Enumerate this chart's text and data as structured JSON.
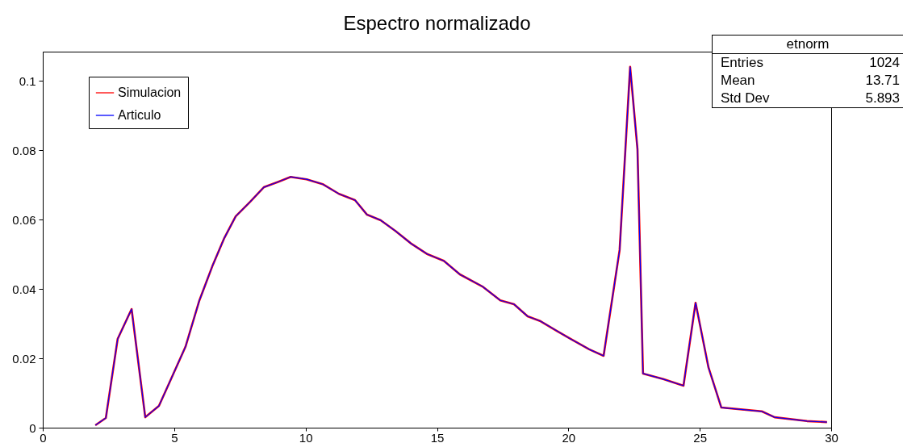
{
  "chart_data": {
    "type": "line",
    "title": "Espectro normalizado",
    "xlim": [
      0,
      30
    ],
    "ylim": [
      0,
      0.1084
    ],
    "xticks": [
      0,
      5,
      10,
      15,
      20,
      25,
      30
    ],
    "yticks": [
      0,
      0.02,
      0.04,
      0.06,
      0.08,
      0.1
    ],
    "legend": "top left",
    "annotations": [
      "etnorm",
      "Entries",
      "1024",
      "Mean",
      "13.71",
      "Std Dev",
      "5.893"
    ],
    "series": [
      {
        "name": "Simulacion",
        "color": "#ff0000",
        "x": [
          2.0,
          2.4,
          2.85,
          3.38,
          3.9,
          4.42,
          4.88,
          5.43,
          5.96,
          6.45,
          6.91,
          7.34,
          7.89,
          8.41,
          8.97,
          9.43,
          10.04,
          10.65,
          11.27,
          11.88,
          12.34,
          12.86,
          13.42,
          14.03,
          14.64,
          15.26,
          15.87,
          16.73,
          17.41,
          17.93,
          18.45,
          18.94,
          19.56,
          20.08,
          20.79,
          21.34,
          21.95,
          22.35,
          22.63,
          22.84,
          23.61,
          24.38,
          24.84,
          25.33,
          25.82,
          27.36,
          27.85,
          29.08,
          29.84
        ],
        "values": [
          0.0007,
          0.0028,
          0.0256,
          0.0342,
          0.003,
          0.0063,
          0.014,
          0.0233,
          0.0367,
          0.0465,
          0.0547,
          0.0609,
          0.0651,
          0.0693,
          0.0709,
          0.0723,
          0.0716,
          0.0702,
          0.0674,
          0.0656,
          0.0614,
          0.0598,
          0.0567,
          0.053,
          0.05,
          0.0481,
          0.0442,
          0.0407,
          0.0367,
          0.0356,
          0.0321,
          0.0307,
          0.0279,
          0.0256,
          0.0226,
          0.0207,
          0.0512,
          0.104,
          0.0802,
          0.0156,
          0.014,
          0.0121,
          0.036,
          0.0174,
          0.0058,
          0.0047,
          0.003,
          0.0019,
          0.0016
        ]
      },
      {
        "name": "Articulo",
        "color": "#0000ff",
        "x": [
          2.0,
          2.4,
          2.85,
          3.38,
          3.9,
          4.42,
          4.88,
          5.43,
          5.96,
          6.45,
          6.91,
          7.34,
          7.89,
          8.41,
          8.97,
          9.43,
          10.04,
          10.65,
          11.27,
          11.88,
          12.34,
          12.86,
          13.42,
          14.03,
          14.64,
          15.26,
          15.87,
          16.73,
          17.41,
          17.93,
          18.45,
          18.94,
          19.56,
          20.08,
          20.79,
          21.34,
          21.95,
          22.35,
          22.63,
          22.84,
          23.61,
          24.38,
          24.84,
          25.33,
          25.82,
          27.36,
          27.85,
          29.08,
          29.84
        ],
        "values": [
          0.0007,
          0.0028,
          0.0256,
          0.0342,
          0.003,
          0.0063,
          0.014,
          0.0233,
          0.0367,
          0.0465,
          0.0547,
          0.0609,
          0.0651,
          0.0693,
          0.0709,
          0.0723,
          0.0716,
          0.0702,
          0.0674,
          0.0656,
          0.0614,
          0.0598,
          0.0567,
          0.053,
          0.05,
          0.0481,
          0.0442,
          0.0407,
          0.0367,
          0.0356,
          0.0321,
          0.0307,
          0.0279,
          0.0256,
          0.0226,
          0.0207,
          0.0512,
          0.104,
          0.0802,
          0.0156,
          0.014,
          0.0121,
          0.036,
          0.0174,
          0.0058,
          0.0047,
          0.003,
          0.0019,
          0.0016
        ]
      }
    ]
  }
}
